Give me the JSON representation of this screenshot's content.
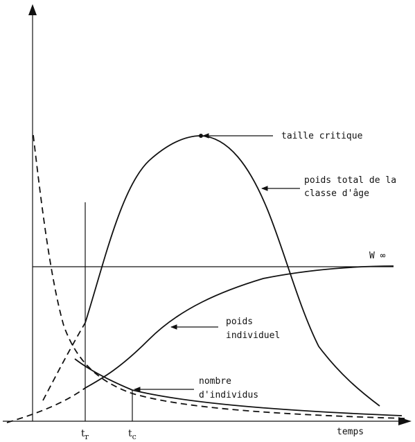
{
  "diagram": {
    "labels": {
      "taille_critique": "taille critique",
      "poids_total_1": "poids total de la",
      "poids_total_2": "classe d'âge",
      "w_inf": "W ∞",
      "poids_individuel_1": "poids",
      "poids_individuel_2": "individuel",
      "nombre_individus_1": "nombre",
      "nombre_individus_2": "d'individus",
      "temps": "temps"
    },
    "ticks": {
      "tr_main": "t",
      "tr_sub": "r",
      "tc_main": "t",
      "tc_sub": "c"
    }
  }
}
